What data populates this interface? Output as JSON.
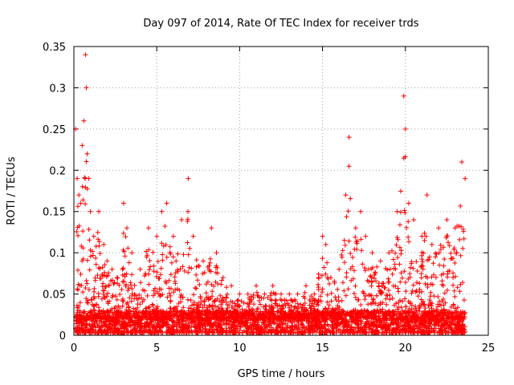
{
  "chart_data": {
    "type": "scatter",
    "title": "Day 097 of 2014, Rate Of TEC Index for receiver trds",
    "xlabel": "GPS time / hours",
    "ylabel": "ROTI / TECUs",
    "xlim": [
      0,
      25
    ],
    "ylim": [
      0,
      0.35
    ],
    "xticks": [
      0,
      5,
      10,
      15,
      20,
      25
    ],
    "xtick_labels": [
      "0",
      "5",
      "10",
      "15",
      "20",
      "25"
    ],
    "yticks": [
      0,
      0.05,
      0.1,
      0.15,
      0.2,
      0.25,
      0.3,
      0.35
    ],
    "ytick_labels": [
      "0",
      "0.05",
      "0.1",
      "0.15",
      "0.2",
      "0.25",
      "0.3",
      "0.35"
    ],
    "grid": true,
    "marker": "+",
    "color": "#ff0000",
    "series": [
      {
        "name": "ROTI",
        "x": [
          0.1,
          0.2,
          0.3,
          0.4,
          0.5,
          0.6,
          0.7,
          0.75,
          0.8,
          0.9,
          1.0,
          1.2,
          1.5,
          1.8,
          2.0,
          2.3,
          2.6,
          3.0,
          3.2,
          3.5,
          4.0,
          4.5,
          5.0,
          5.3,
          5.6,
          6.0,
          6.5,
          6.9,
          7.2,
          7.8,
          8.3,
          8.6,
          9.0,
          9.5,
          10.0,
          10.5,
          11.0,
          11.5,
          12.0,
          12.5,
          13.0,
          13.5,
          14.0,
          14.5,
          15.0,
          15.2,
          15.5,
          16.0,
          16.4,
          16.6,
          17.0,
          17.3,
          17.6,
          18.0,
          18.5,
          19.0,
          19.5,
          19.9,
          20.0,
          20.2,
          20.5,
          21.0,
          21.3,
          21.6,
          22.0,
          22.5,
          23.0,
          23.4,
          23.6
        ],
        "y": [
          0.25,
          0.19,
          0.17,
          0.16,
          0.23,
          0.26,
          0.34,
          0.3,
          0.22,
          0.19,
          0.15,
          0.12,
          0.15,
          0.11,
          0.09,
          0.08,
          0.07,
          0.16,
          0.13,
          0.1,
          0.08,
          0.13,
          0.12,
          0.15,
          0.16,
          0.12,
          0.14,
          0.19,
          0.12,
          0.09,
          0.13,
          0.1,
          0.07,
          0.06,
          0.05,
          0.05,
          0.06,
          0.05,
          0.06,
          0.05,
          0.05,
          0.05,
          0.06,
          0.05,
          0.12,
          0.11,
          0.07,
          0.08,
          0.17,
          0.24,
          0.13,
          0.15,
          0.12,
          0.1,
          0.09,
          0.1,
          0.15,
          0.29,
          0.25,
          0.16,
          0.14,
          0.12,
          0.17,
          0.11,
          0.13,
          0.14,
          0.13,
          0.21,
          0.19
        ],
        "baseline_band": [
          0.0,
          0.05
        ],
        "mean_level": 0.02
      }
    ]
  }
}
